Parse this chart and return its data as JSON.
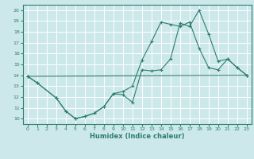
{
  "xlabel": "Humidex (Indice chaleur)",
  "xlim": [
    -0.5,
    23.5
  ],
  "ylim": [
    9.5,
    20.5
  ],
  "yticks": [
    10,
    11,
    12,
    13,
    14,
    15,
    16,
    17,
    18,
    19,
    20
  ],
  "xticks": [
    0,
    1,
    2,
    3,
    4,
    5,
    6,
    7,
    8,
    9,
    10,
    11,
    12,
    13,
    14,
    15,
    16,
    17,
    18,
    19,
    20,
    21,
    22,
    23
  ],
  "line_color": "#2e7d6e",
  "bg_color": "#cce8eb",
  "grid_color": "#ffffff",
  "line1_x": [
    0,
    1,
    3,
    4,
    5,
    6,
    7,
    8,
    9,
    10,
    11,
    12,
    13,
    14,
    15,
    16,
    17,
    18,
    19,
    20,
    21,
    22,
    23
  ],
  "line1_y": [
    13.9,
    13.3,
    11.9,
    10.7,
    10.0,
    10.2,
    10.5,
    11.1,
    12.3,
    12.2,
    11.5,
    14.5,
    14.4,
    14.5,
    15.5,
    18.8,
    18.5,
    20.0,
    17.8,
    15.3,
    15.5,
    14.7,
    14.0
  ],
  "line2_x": [
    0,
    1,
    3,
    4,
    5,
    6,
    7,
    8,
    9,
    10,
    11,
    12,
    13,
    14,
    15,
    16,
    17,
    18,
    19,
    20,
    21,
    22,
    23
  ],
  "line2_y": [
    13.9,
    13.3,
    11.9,
    10.7,
    10.0,
    10.2,
    10.5,
    11.1,
    12.3,
    12.5,
    13.0,
    15.4,
    17.1,
    18.9,
    18.7,
    18.5,
    18.9,
    16.5,
    14.7,
    14.5,
    15.5,
    14.7,
    14.0
  ],
  "line3_x": [
    0,
    23
  ],
  "line3_y": [
    13.9,
    14.0
  ]
}
